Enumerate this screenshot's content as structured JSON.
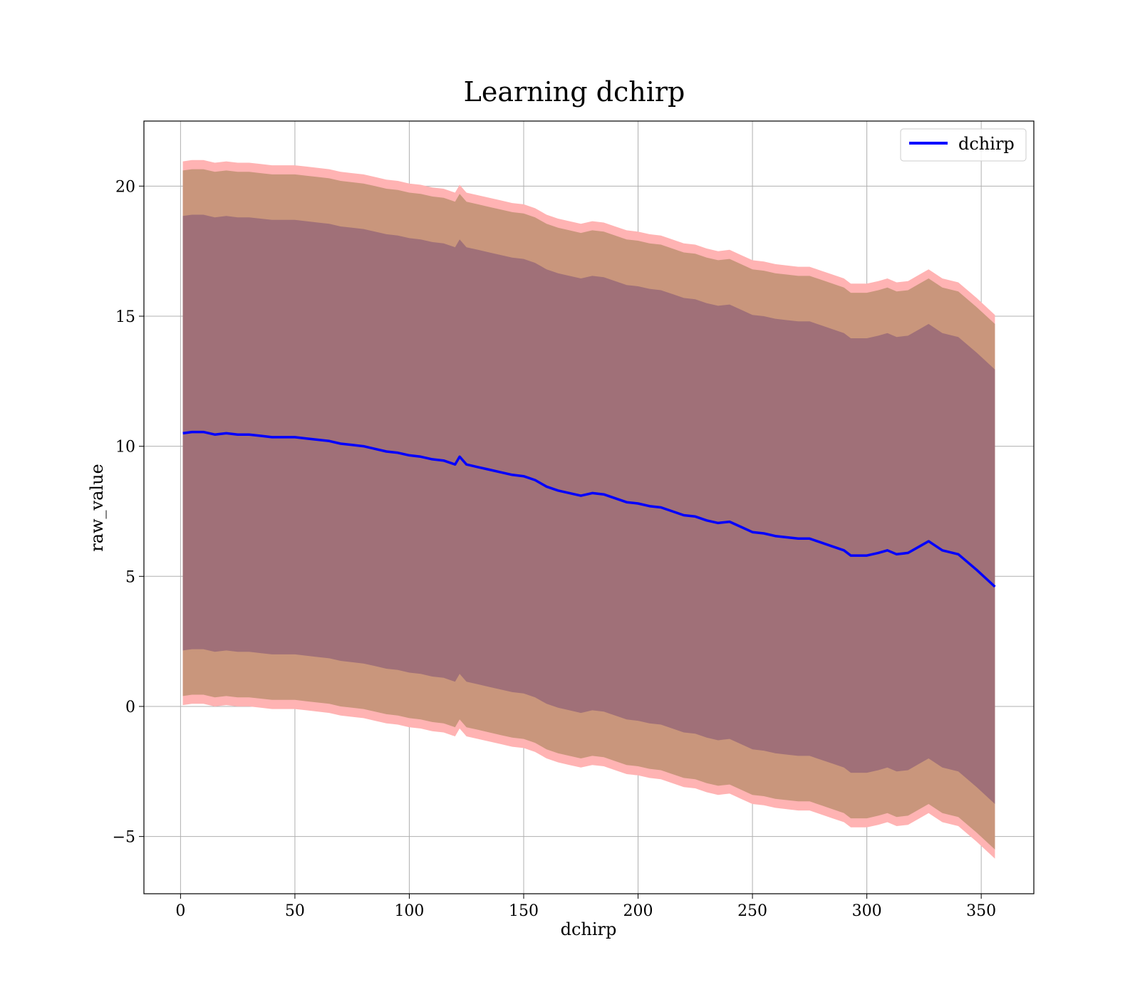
{
  "chart_data": {
    "type": "line",
    "title": "Learning dchirp",
    "xlabel": "dchirp",
    "ylabel": "raw_value",
    "xlim": [
      -16,
      373
    ],
    "ylim": [
      -7.2,
      22.5
    ],
    "xticks": [
      0,
      50,
      100,
      150,
      200,
      250,
      300,
      350
    ],
    "yticks": [
      -5,
      0,
      5,
      10,
      15,
      20
    ],
    "ytick_labels": [
      "−5",
      "0",
      "5",
      "10",
      "15",
      "20"
    ],
    "grid": true,
    "legend": {
      "position": "top-right",
      "entries": [
        "dchirp"
      ]
    },
    "colors": {
      "line": "#0000ff",
      "band_outer": "#ffb3b3",
      "band_mid": "#c9967c",
      "band_inner": "#a07078"
    },
    "series": [
      {
        "name": "dchirp",
        "x": [
          1,
          5,
          10,
          15,
          20,
          25,
          30,
          35,
          40,
          45,
          50,
          55,
          60,
          65,
          70,
          75,
          80,
          85,
          90,
          95,
          100,
          105,
          110,
          115,
          120,
          122,
          125,
          130,
          135,
          140,
          145,
          150,
          155,
          160,
          165,
          170,
          175,
          180,
          185,
          190,
          195,
          200,
          205,
          210,
          215,
          220,
          225,
          230,
          235,
          240,
          245,
          250,
          255,
          260,
          265,
          270,
          275,
          280,
          285,
          290,
          293,
          296,
          300,
          305,
          309,
          313,
          318,
          323,
          327,
          333,
          340,
          348,
          356
        ],
        "y": [
          10.5,
          10.55,
          10.55,
          10.45,
          10.5,
          10.45,
          10.45,
          10.4,
          10.35,
          10.35,
          10.35,
          10.3,
          10.25,
          10.2,
          10.1,
          10.05,
          10.0,
          9.9,
          9.8,
          9.75,
          9.65,
          9.6,
          9.5,
          9.45,
          9.3,
          9.6,
          9.3,
          9.2,
          9.1,
          9.0,
          8.9,
          8.85,
          8.7,
          8.45,
          8.3,
          8.2,
          8.1,
          8.2,
          8.15,
          8.0,
          7.85,
          7.8,
          7.7,
          7.65,
          7.5,
          7.35,
          7.3,
          7.15,
          7.05,
          7.1,
          6.9,
          6.7,
          6.65,
          6.55,
          6.5,
          6.45,
          6.45,
          6.3,
          6.15,
          6.0,
          5.8,
          5.8,
          5.8,
          5.9,
          6.0,
          5.85,
          5.9,
          6.15,
          6.35,
          6.0,
          5.85,
          5.25,
          4.6
        ],
        "band_outer_offset": 10.45,
        "band_mid_offset": 10.1,
        "band_inner_offset": 8.35
      }
    ]
  }
}
